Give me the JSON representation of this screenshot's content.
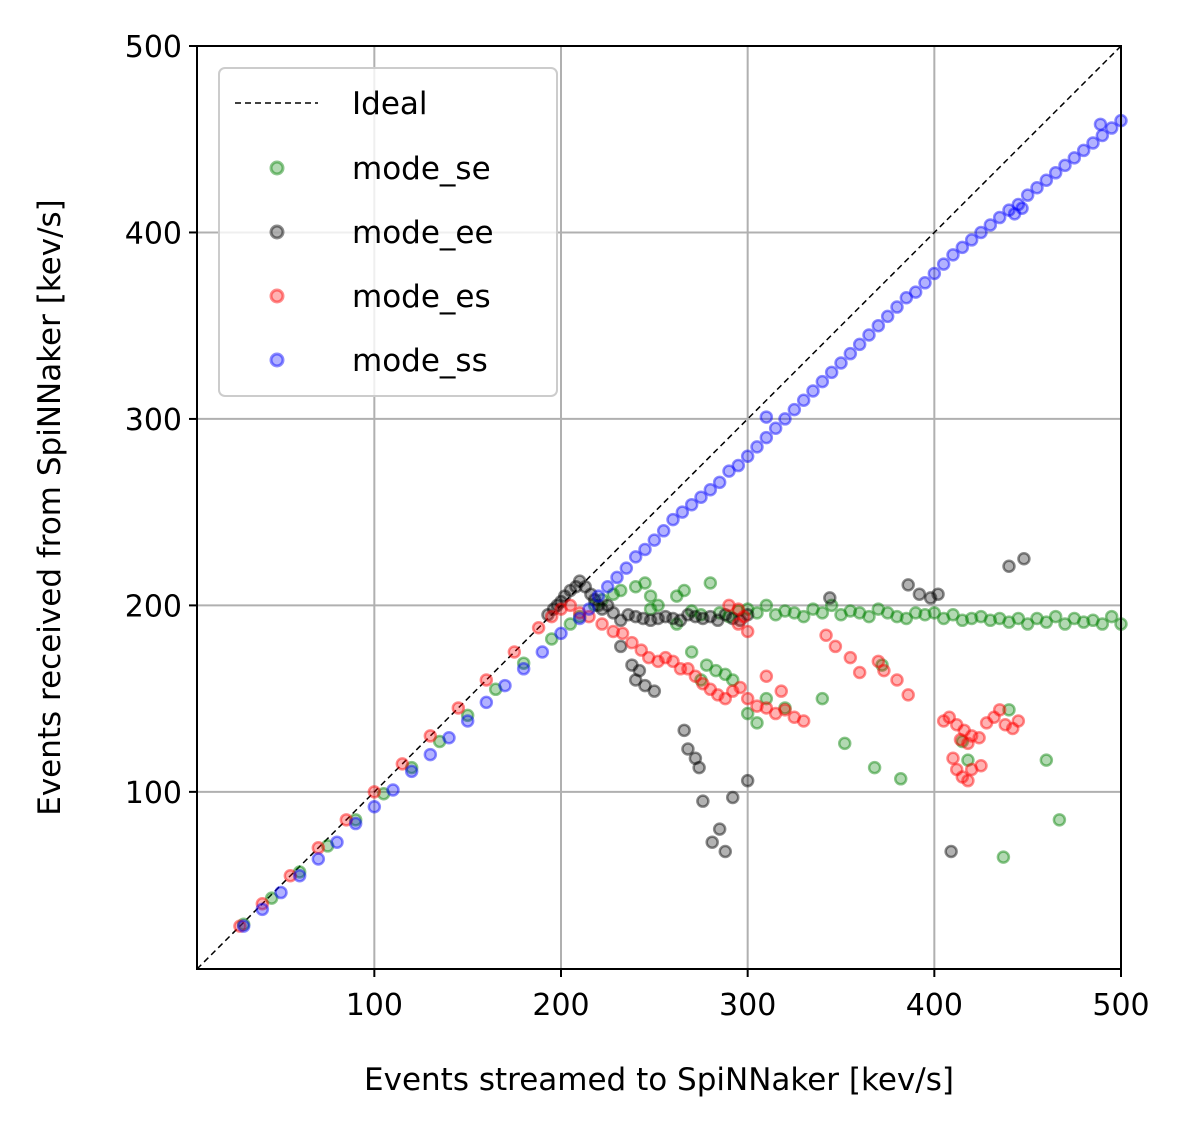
{
  "chart_data": {
    "type": "scatter",
    "xlabel": "Events streamed to SpiNNaker [kev/s]",
    "ylabel": "Events received from SpiNNaker [kev/s]",
    "xlim": [
      5,
      500
    ],
    "ylim": [
      5,
      500
    ],
    "xticks": [
      100,
      200,
      300,
      400,
      500
    ],
    "yticks": [
      100,
      200,
      300,
      400,
      500
    ],
    "grid": true,
    "legend_position": "top-left",
    "ideal_line": {
      "name": "Ideal",
      "x": [
        5,
        500
      ],
      "y": [
        5,
        500
      ],
      "color": "#000000",
      "style": "dashed"
    },
    "series": [
      {
        "name": "mode_se",
        "color": "#008000",
        "points": [
          [
            30,
            29
          ],
          [
            45,
            43
          ],
          [
            60,
            57
          ],
          [
            75,
            71
          ],
          [
            90,
            85
          ],
          [
            105,
            99
          ],
          [
            120,
            113
          ],
          [
            135,
            127
          ],
          [
            150,
            141
          ],
          [
            165,
            155
          ],
          [
            180,
            169
          ],
          [
            195,
            182
          ],
          [
            205,
            190
          ],
          [
            210,
            194
          ],
          [
            218,
            200
          ],
          [
            222,
            203
          ],
          [
            228,
            206
          ],
          [
            232,
            208
          ],
          [
            240,
            210
          ],
          [
            245,
            212
          ],
          [
            248,
            205
          ],
          [
            252,
            200
          ],
          [
            262,
            205
          ],
          [
            266,
            208
          ],
          [
            270,
            197
          ],
          [
            275,
            195
          ],
          [
            280,
            212
          ],
          [
            285,
            196
          ],
          [
            290,
            194
          ],
          [
            295,
            197
          ],
          [
            300,
            198
          ],
          [
            305,
            196
          ],
          [
            310,
            200
          ],
          [
            315,
            195
          ],
          [
            320,
            197
          ],
          [
            325,
            196
          ],
          [
            330,
            194
          ],
          [
            335,
            198
          ],
          [
            340,
            196
          ],
          [
            345,
            200
          ],
          [
            350,
            195
          ],
          [
            355,
            197
          ],
          [
            360,
            196
          ],
          [
            365,
            194
          ],
          [
            370,
            198
          ],
          [
            375,
            196
          ],
          [
            380,
            194
          ],
          [
            385,
            193
          ],
          [
            390,
            196
          ],
          [
            395,
            195
          ],
          [
            400,
            196
          ],
          [
            405,
            193
          ],
          [
            410,
            195
          ],
          [
            415,
            192
          ],
          [
            420,
            193
          ],
          [
            425,
            194
          ],
          [
            430,
            192
          ],
          [
            435,
            193
          ],
          [
            440,
            191
          ],
          [
            445,
            193
          ],
          [
            450,
            190
          ],
          [
            455,
            193
          ],
          [
            460,
            191
          ],
          [
            465,
            194
          ],
          [
            470,
            190
          ],
          [
            475,
            193
          ],
          [
            480,
            191
          ],
          [
            485,
            192
          ],
          [
            490,
            190
          ],
          [
            495,
            194
          ],
          [
            500,
            190
          ],
          [
            248,
            198
          ],
          [
            262,
            190
          ],
          [
            270,
            175
          ],
          [
            275,
            160
          ],
          [
            278,
            168
          ],
          [
            283,
            165
          ],
          [
            288,
            163
          ],
          [
            292,
            160
          ],
          [
            300,
            142
          ],
          [
            305,
            137
          ],
          [
            310,
            150
          ],
          [
            320,
            145
          ],
          [
            340,
            150
          ],
          [
            352,
            126
          ],
          [
            368,
            113
          ],
          [
            382,
            107
          ],
          [
            415,
            127
          ],
          [
            418,
            117
          ],
          [
            437,
            65
          ],
          [
            440,
            144
          ],
          [
            460,
            117
          ],
          [
            467,
            85
          ],
          [
            372,
            168
          ]
        ]
      },
      {
        "name": "mode_ee",
        "color": "#000000",
        "points": [
          [
            193,
            195
          ],
          [
            196,
            198
          ],
          [
            198,
            200
          ],
          [
            200,
            202
          ],
          [
            202,
            205
          ],
          [
            205,
            208
          ],
          [
            208,
            210
          ],
          [
            210,
            213
          ],
          [
            213,
            210
          ],
          [
            216,
            206
          ],
          [
            218,
            203
          ],
          [
            220,
            200
          ],
          [
            222,
            198
          ],
          [
            225,
            200
          ],
          [
            228,
            196
          ],
          [
            232,
            192
          ],
          [
            236,
            195
          ],
          [
            240,
            194
          ],
          [
            244,
            193
          ],
          [
            248,
            192
          ],
          [
            252,
            193
          ],
          [
            256,
            194
          ],
          [
            260,
            193
          ],
          [
            264,
            192
          ],
          [
            268,
            195
          ],
          [
            272,
            194
          ],
          [
            276,
            193
          ],
          [
            280,
            194
          ],
          [
            284,
            192
          ],
          [
            288,
            195
          ],
          [
            292,
            193
          ],
          [
            296,
            192
          ],
          [
            300,
            195
          ],
          [
            232,
            178
          ],
          [
            238,
            168
          ],
          [
            240,
            160
          ],
          [
            242,
            165
          ],
          [
            245,
            157
          ],
          [
            250,
            154
          ],
          [
            266,
            133
          ],
          [
            268,
            123
          ],
          [
            272,
            118
          ],
          [
            274,
            113
          ],
          [
            276,
            95
          ],
          [
            281,
            73
          ],
          [
            285,
            80
          ],
          [
            288,
            68
          ],
          [
            292,
            97
          ],
          [
            300,
            106
          ],
          [
            344,
            204
          ],
          [
            386,
            211
          ],
          [
            392,
            206
          ],
          [
            398,
            204
          ],
          [
            402,
            206
          ],
          [
            409,
            68
          ],
          [
            440,
            221
          ],
          [
            448,
            225
          ]
        ]
      },
      {
        "name": "mode_es",
        "color": "#ff0000",
        "points": [
          [
            28,
            28
          ],
          [
            40,
            40
          ],
          [
            55,
            55
          ],
          [
            70,
            70
          ],
          [
            85,
            85
          ],
          [
            100,
            100
          ],
          [
            115,
            115
          ],
          [
            130,
            130
          ],
          [
            145,
            145
          ],
          [
            160,
            160
          ],
          [
            175,
            175
          ],
          [
            188,
            188
          ],
          [
            195,
            194
          ],
          [
            200,
            198
          ],
          [
            205,
            200
          ],
          [
            210,
            196
          ],
          [
            215,
            194
          ],
          [
            222,
            190
          ],
          [
            228,
            186
          ],
          [
            233,
            185
          ],
          [
            238,
            180
          ],
          [
            243,
            176
          ],
          [
            247,
            172
          ],
          [
            252,
            170
          ],
          [
            256,
            172
          ],
          [
            260,
            170
          ],
          [
            264,
            166
          ],
          [
            268,
            166
          ],
          [
            272,
            162
          ],
          [
            276,
            158
          ],
          [
            280,
            155
          ],
          [
            284,
            152
          ],
          [
            288,
            150
          ],
          [
            292,
            154
          ],
          [
            296,
            156
          ],
          [
            300,
            150
          ],
          [
            305,
            146
          ],
          [
            310,
            145
          ],
          [
            315,
            142
          ],
          [
            320,
            144
          ],
          [
            325,
            140
          ],
          [
            290,
            200
          ],
          [
            295,
            198
          ],
          [
            298,
            194
          ],
          [
            295,
            190
          ],
          [
            300,
            186
          ],
          [
            310,
            162
          ],
          [
            318,
            154
          ],
          [
            330,
            138
          ],
          [
            342,
            184
          ],
          [
            347,
            178
          ],
          [
            355,
            172
          ],
          [
            360,
            164
          ],
          [
            370,
            170
          ],
          [
            373,
            165
          ],
          [
            380,
            160
          ],
          [
            386,
            152
          ],
          [
            405,
            138
          ],
          [
            408,
            140
          ],
          [
            412,
            136
          ],
          [
            414,
            128
          ],
          [
            416,
            133
          ],
          [
            418,
            126
          ],
          [
            420,
            130
          ],
          [
            424,
            129
          ],
          [
            428,
            137
          ],
          [
            432,
            140
          ],
          [
            435,
            144
          ],
          [
            438,
            136
          ],
          [
            442,
            134
          ],
          [
            445,
            138
          ],
          [
            410,
            118
          ],
          [
            412,
            112
          ],
          [
            415,
            108
          ],
          [
            418,
            106
          ],
          [
            420,
            112
          ],
          [
            425,
            114
          ]
        ]
      },
      {
        "name": "mode_ss",
        "color": "#0000ff",
        "points": [
          [
            30,
            28
          ],
          [
            40,
            37
          ],
          [
            50,
            46
          ],
          [
            60,
            55
          ],
          [
            70,
            64
          ],
          [
            80,
            73
          ],
          [
            90,
            83
          ],
          [
            100,
            92
          ],
          [
            110,
            101
          ],
          [
            120,
            111
          ],
          [
            130,
            120
          ],
          [
            140,
            129
          ],
          [
            150,
            138
          ],
          [
            160,
            148
          ],
          [
            170,
            157
          ],
          [
            180,
            166
          ],
          [
            190,
            175
          ],
          [
            200,
            185
          ],
          [
            210,
            193
          ],
          [
            215,
            198
          ],
          [
            220,
            205
          ],
          [
            225,
            210
          ],
          [
            230,
            215
          ],
          [
            235,
            220
          ],
          [
            240,
            226
          ],
          [
            245,
            230
          ],
          [
            250,
            235
          ],
          [
            255,
            240
          ],
          [
            260,
            246
          ],
          [
            265,
            250
          ],
          [
            270,
            254
          ],
          [
            275,
            258
          ],
          [
            280,
            262
          ],
          [
            285,
            266
          ],
          [
            290,
            272
          ],
          [
            295,
            275
          ],
          [
            300,
            280
          ],
          [
            305,
            285
          ],
          [
            310,
            290
          ],
          [
            315,
            295
          ],
          [
            320,
            300
          ],
          [
            325,
            305
          ],
          [
            330,
            310
          ],
          [
            335,
            315
          ],
          [
            340,
            320
          ],
          [
            345,
            325
          ],
          [
            350,
            330
          ],
          [
            355,
            335
          ],
          [
            360,
            340
          ],
          [
            365,
            345
          ],
          [
            370,
            350
          ],
          [
            375,
            355
          ],
          [
            380,
            360
          ],
          [
            385,
            365
          ],
          [
            390,
            368
          ],
          [
            395,
            373
          ],
          [
            400,
            378
          ],
          [
            405,
            383
          ],
          [
            410,
            388
          ],
          [
            415,
            392
          ],
          [
            420,
            396
          ],
          [
            425,
            400
          ],
          [
            430,
            404
          ],
          [
            435,
            408
          ],
          [
            440,
            412
          ],
          [
            445,
            415
          ],
          [
            450,
            420
          ],
          [
            455,
            424
          ],
          [
            460,
            428
          ],
          [
            465,
            432
          ],
          [
            470,
            436
          ],
          [
            475,
            440
          ],
          [
            480,
            444
          ],
          [
            485,
            448
          ],
          [
            490,
            452
          ],
          [
            495,
            456
          ],
          [
            500,
            460
          ],
          [
            310,
            301
          ],
          [
            443,
            410
          ],
          [
            447,
            413
          ],
          [
            489,
            458
          ]
        ]
      }
    ]
  }
}
